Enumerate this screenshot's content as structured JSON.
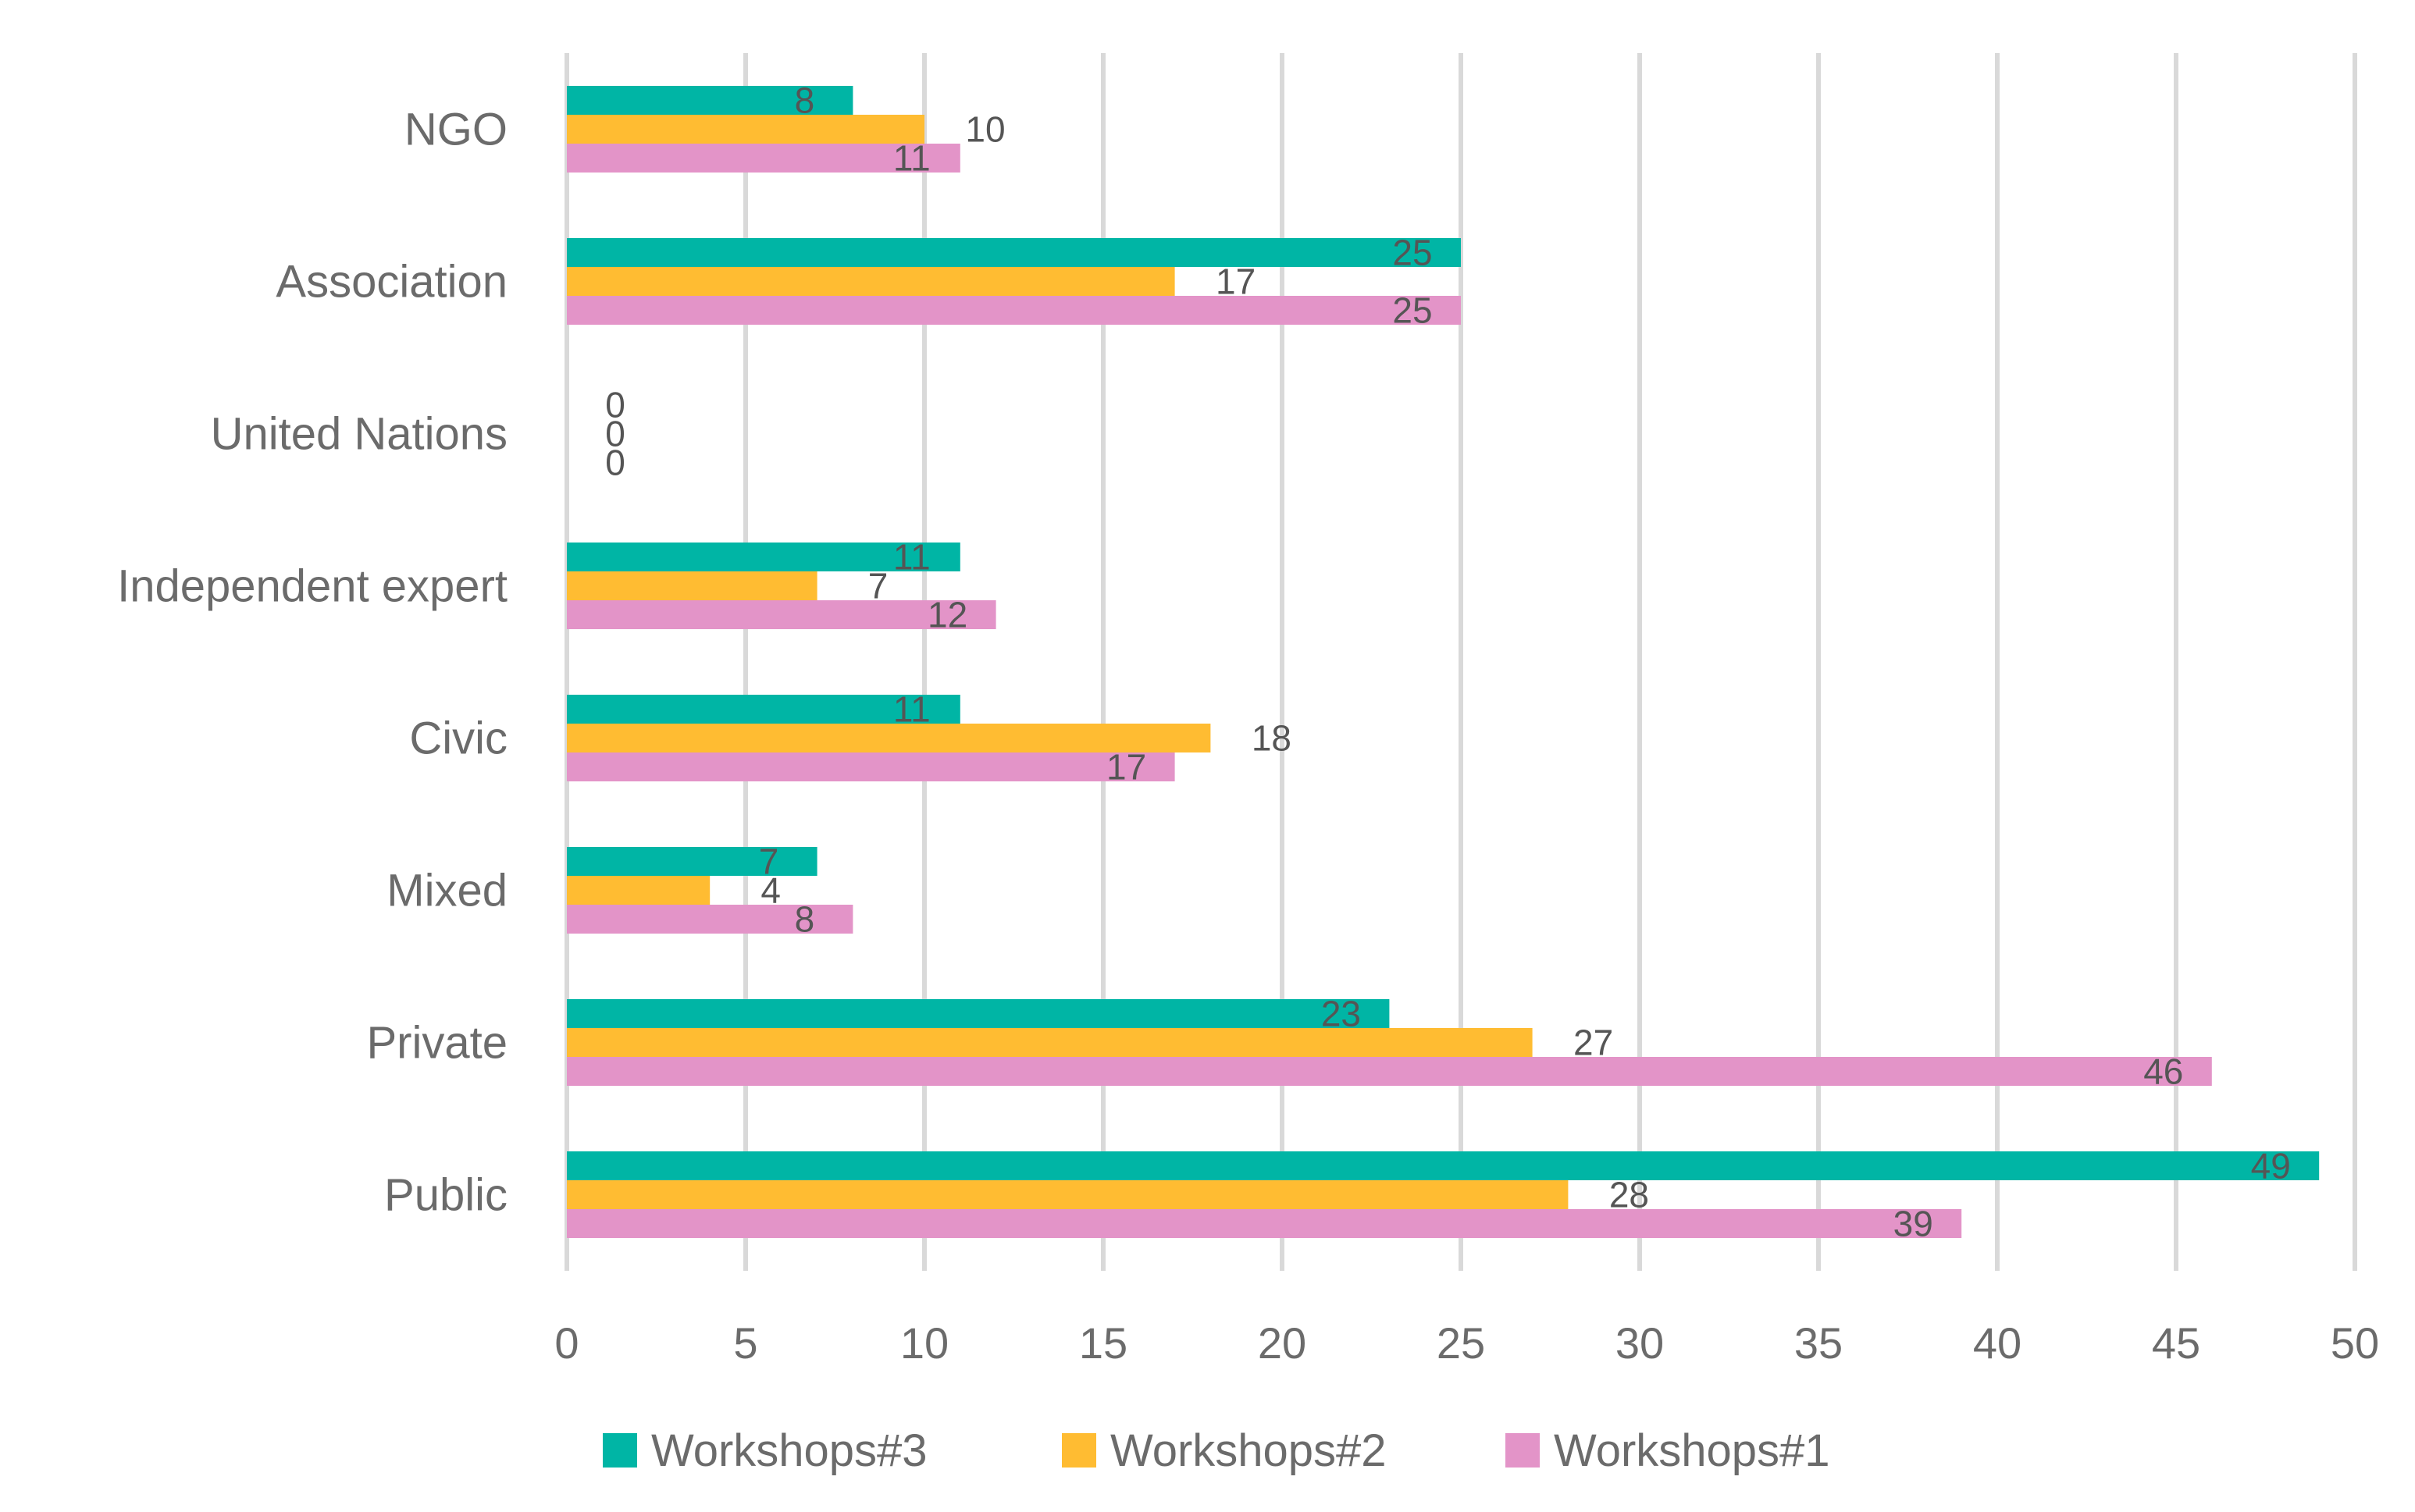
{
  "chart_data": {
    "type": "bar",
    "orientation": "horizontal",
    "categories": [
      "NGO",
      "Association",
      "United Nations",
      "Independent expert",
      "Civic",
      "Mixed",
      "Private",
      "Public"
    ],
    "series": [
      {
        "name": "Workshops#3",
        "color": "#00b5a5",
        "values": [
          8,
          25,
          0,
          11,
          11,
          7,
          23,
          49
        ]
      },
      {
        "name": "Workshops#2",
        "color": "#ffbc32",
        "values": [
          10,
          17,
          0,
          7,
          18,
          4,
          27,
          28
        ]
      },
      {
        "name": "Workshops#1",
        "color": "#e394c8",
        "values": [
          11,
          25,
          0,
          12,
          17,
          8,
          46,
          39
        ]
      }
    ],
    "xlim": [
      0,
      50
    ],
    "xticks": [
      "0",
      "5",
      "10",
      "15",
      "20",
      "25",
      "30",
      "35",
      "40",
      "45",
      "50"
    ],
    "grid": "vertical",
    "legend": "bottom",
    "title": "",
    "xlabel": "",
    "ylabel": ""
  }
}
